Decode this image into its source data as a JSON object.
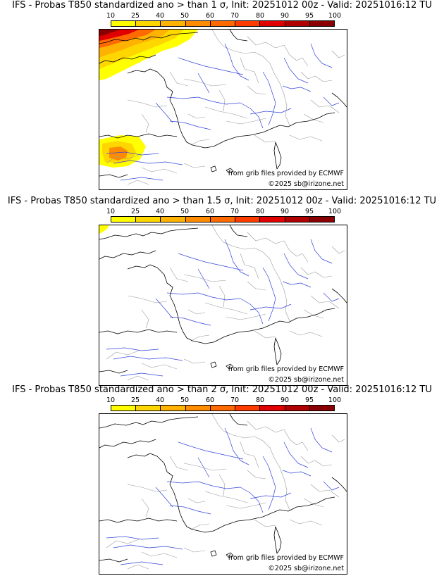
{
  "colorbar": {
    "labels": [
      "10",
      "25",
      "40",
      "50",
      "60",
      "70",
      "80",
      "90",
      "95",
      "100"
    ],
    "colors": [
      "#ffff00",
      "#ffd700",
      "#ffb300",
      "#ff8c00",
      "#ff6a00",
      "#ff3c00",
      "#e00000",
      "#b00000",
      "#8a0000",
      "#5a0000"
    ]
  },
  "panels": [
    {
      "title": "IFS - Probas T850  standardized ano > than 1 σ, Init: 20251012 00z - Valid: 20251016:12 TU",
      "source": "from grib files provided by ECMWF",
      "copyright": "©2025 sb@irizone.net"
    },
    {
      "title": "IFS - Probas T850  standardized ano > than 1.5 σ, Init: 20251012 00z - Valid: 20251016:12 TU",
      "source": "from grib files provided by ECMWF",
      "copyright": "©2025 sb@irizone.net"
    },
    {
      "title": "IFS - Probas T850  standardized ano > than 2 σ, Init: 20251012 00z - Valid: 20251016:12 TU",
      "source": "from grib files provided by ECMWF",
      "copyright": "©2025 sb@irizone.net"
    }
  ],
  "colors": {
    "coast": "#000000",
    "rivers": "#3344dd",
    "borders": "#999999"
  }
}
